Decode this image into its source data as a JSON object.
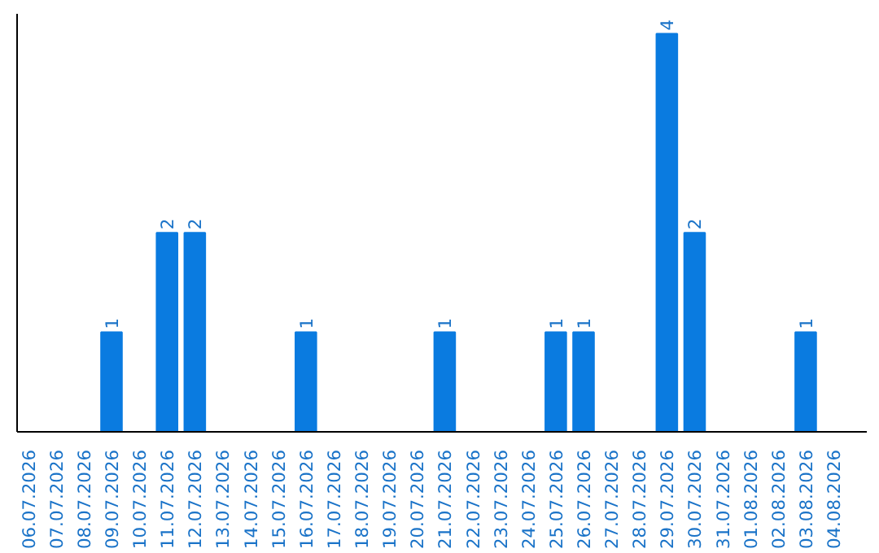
{
  "chart_data": {
    "type": "bar",
    "categories": [
      "06.07.2026",
      "07.07.2026",
      "08.07.2026",
      "09.07.2026",
      "10.07.2026",
      "11.07.2026",
      "12.07.2026",
      "13.07.2026",
      "14.07.2026",
      "15.07.2026",
      "16.07.2026",
      "17.07.2026",
      "18.07.2026",
      "19.07.2026",
      "20.07.2026",
      "21.07.2026",
      "22.07.2026",
      "23.07.2026",
      "24.07.2026",
      "25.07.2026",
      "26.07.2026",
      "27.07.2026",
      "28.07.2026",
      "29.07.2026",
      "30.07.2026",
      "31.07.2026",
      "01.08.2026",
      "02.08.2026",
      "03.08.2026",
      "04.08.2026"
    ],
    "values": [
      0,
      0,
      0,
      1,
      0,
      2,
      2,
      0,
      0,
      0,
      1,
      0,
      0,
      0,
      0,
      1,
      0,
      0,
      0,
      1,
      1,
      0,
      0,
      4,
      2,
      0,
      0,
      0,
      1,
      0
    ],
    "value_labels": [
      null,
      null,
      null,
      "1",
      null,
      "2",
      "2",
      null,
      null,
      null,
      "1",
      null,
      null,
      null,
      null,
      "1",
      null,
      null,
      null,
      "1",
      "1",
      null,
      null,
      "4",
      "2",
      null,
      null,
      null,
      "1",
      null
    ],
    "color": "#0a7be0",
    "ylim": [
      0,
      4.2
    ],
    "tick_labels": "x",
    "grid": false
  }
}
